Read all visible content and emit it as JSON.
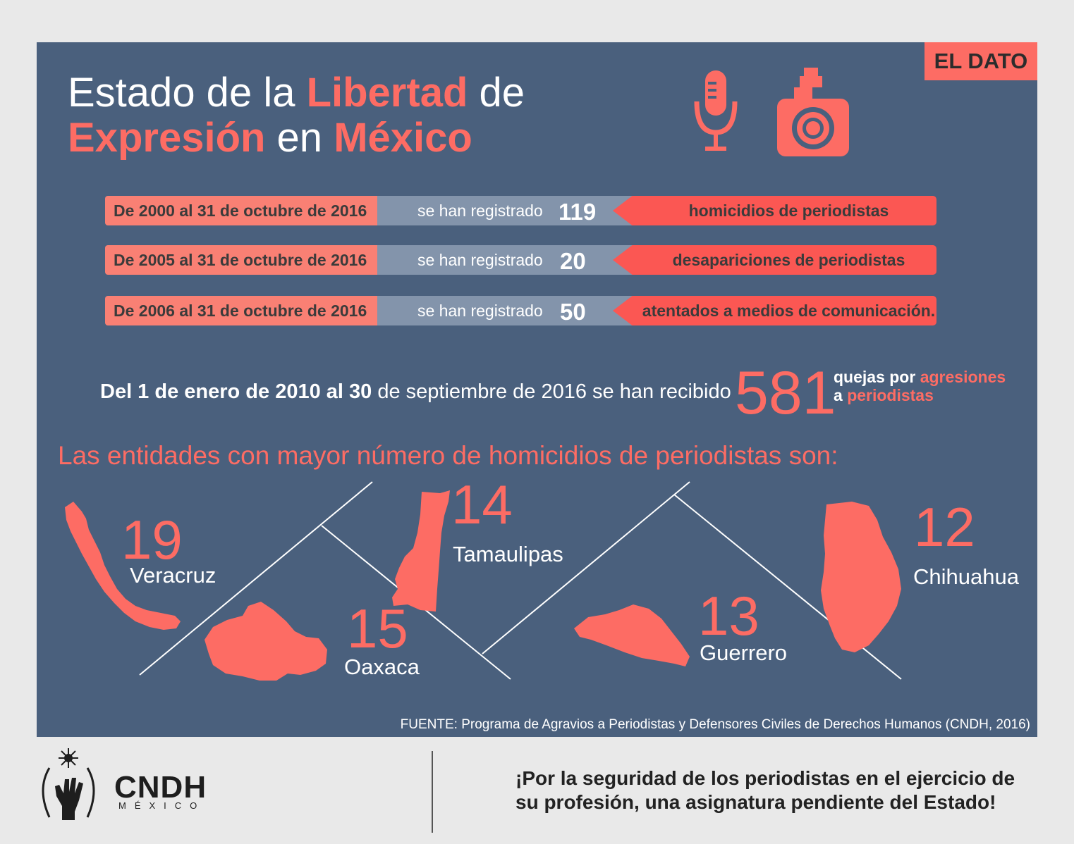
{
  "badge": "EL DATO",
  "title": {
    "w1": "Estado de la ",
    "w2": "Libertad",
    "w3": " de",
    "w4": "Expresión",
    "w5": " en ",
    "w6": "México"
  },
  "icons": {
    "microphone": "microphone-icon",
    "camera": "camera-icon"
  },
  "rows": [
    {
      "period": "De 2000 al 31 de octubre de 2016",
      "mid": "se han registrado",
      "num": "119",
      "what": "homicidios de periodistas"
    },
    {
      "period": "De 2005 al 31 de octubre de 2016",
      "mid": "se han registrado",
      "num": "20",
      "what": "desapariciones de periodistas"
    },
    {
      "period": "De 2006 al 31 de octubre de 2016",
      "mid": "se han registrado",
      "num": "50",
      "what": "atentados a medios de comunicación."
    }
  ],
  "quejas": {
    "bold": "Del 1 de enero de 2010 al 30",
    "rest": " de septiembre de 2016 se han recibido",
    "number": "581",
    "l1a": "quejas por ",
    "l1b": "agresiones",
    "l2a": "a ",
    "l2b": "periodistas"
  },
  "entidades_title": "Las entidades con mayor número de homicidios de periodistas son:",
  "states": [
    {
      "name": "Veracruz",
      "count": "19"
    },
    {
      "name": "Tamaulipas",
      "count": "14"
    },
    {
      "name": "Oaxaca",
      "count": "15"
    },
    {
      "name": "Guerrero",
      "count": "13"
    },
    {
      "name": "Chihuahua",
      "count": "12"
    }
  ],
  "fuente": "FUENTE: Programa de Agravios a Periodistas y Defensores Civiles de Derechos Humanos (CNDH, 2016)",
  "footer": {
    "org": "CNDH",
    "country": "MÉXICO",
    "slogan1": "¡Por la seguridad de los periodistas en el ejercicio de",
    "slogan2": "su profesión, una asignatura pendiente del Estado!"
  },
  "colors": {
    "panel": "#4a607d",
    "accent": "#fd6c64",
    "accent_dark": "#fb5753",
    "mid_band": "#8394ab"
  }
}
